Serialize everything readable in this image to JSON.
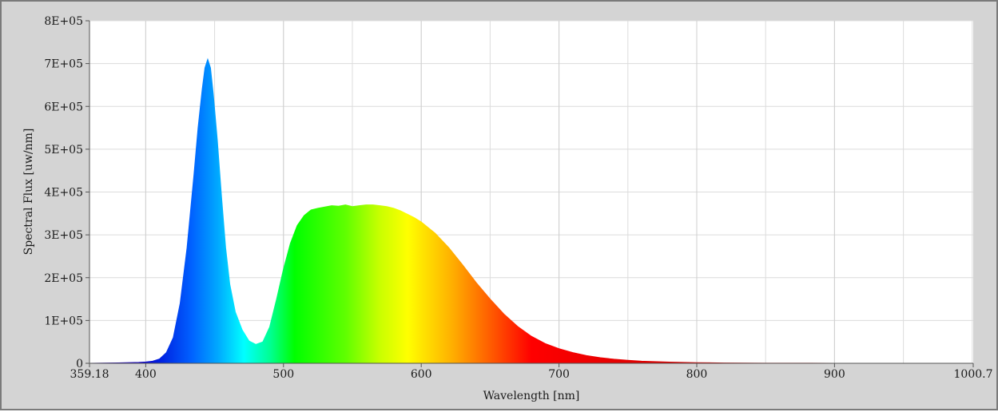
{
  "chart_data": {
    "type": "area",
    "xlabel": "Wavelength [nm]",
    "ylabel": "Spectral Flux [uw/nm]",
    "xlim": [
      359.18,
      1000.7
    ],
    "ylim": [
      0,
      800000
    ],
    "grid": true,
    "x_tick_labels": [
      "359.18",
      "400",
      "500",
      "600",
      "700",
      "800",
      "900",
      "1000.7"
    ],
    "y_tick_labels": [
      "0",
      "1E+05",
      "2E+05",
      "3E+05",
      "4E+05",
      "5E+05",
      "6E+05",
      "7E+05",
      "8E+05"
    ],
    "series": [
      {
        "x": [
          359.18,
          380,
          395,
          400,
          405,
          410,
          415,
          420,
          425,
          430,
          435,
          438,
          441,
          443,
          445,
          447,
          449,
          452,
          455,
          458,
          461,
          465,
          470,
          475,
          480,
          485,
          490,
          495,
          500,
          505,
          510,
          515,
          520,
          525,
          530,
          535,
          540,
          545,
          550,
          555,
          560,
          565,
          570,
          575,
          580,
          585,
          590,
          595,
          600,
          610,
          620,
          630,
          640,
          650,
          660,
          670,
          680,
          690,
          700,
          710,
          720,
          730,
          740,
          750,
          760,
          780,
          800,
          820,
          850,
          900,
          950,
          1000.7
        ],
        "y": [
          0,
          1000,
          2000,
          3000,
          5000,
          10000,
          25000,
          60000,
          140000,
          270000,
          440000,
          550000,
          640000,
          690000,
          710000,
          690000,
          630000,
          520000,
          390000,
          270000,
          185000,
          120000,
          78000,
          52000,
          44000,
          50000,
          85000,
          150000,
          220000,
          280000,
          322000,
          345000,
          358000,
          362000,
          365000,
          368000,
          367000,
          370000,
          366000,
          368000,
          370000,
          370000,
          368000,
          366000,
          362000,
          356000,
          348000,
          340000,
          330000,
          304000,
          270000,
          230000,
          188000,
          150000,
          115000,
          86000,
          63000,
          46000,
          34000,
          25000,
          18000,
          13000,
          9500,
          7000,
          5000,
          2800,
          1500,
          800,
          300,
          100,
          50,
          0
        ]
      }
    ]
  }
}
